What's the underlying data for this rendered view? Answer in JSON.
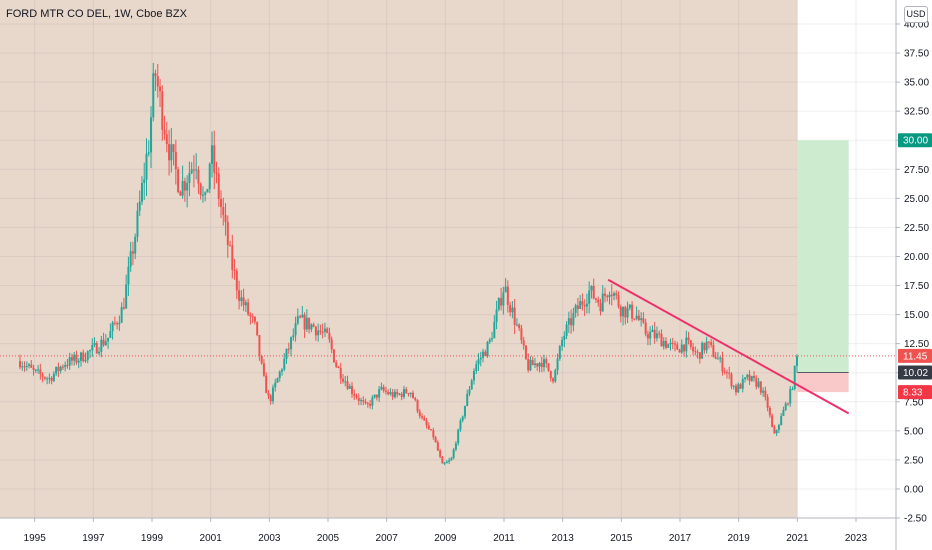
{
  "header": {
    "title": "FORD MTR CO DEL, 1W, Cboe BZX",
    "currency": "USD"
  },
  "colors": {
    "shading": "#e8d7cb",
    "up_candle": "#26a69a",
    "down_candle": "#ef5350",
    "trendline": "#ef2f6a",
    "target_zone": "#cdeccf",
    "stop_zone": "#f9c9c9",
    "target_badge": "#089981",
    "stop_badge": "#f23645",
    "entry_badge": "#363a45",
    "last_price_badge": "#ef5350"
  },
  "chart_data": {
    "type": "candlestick",
    "title": "FORD MTR CO DEL, 1W, Cboe BZX",
    "xlabel": "",
    "ylabel": "",
    "x_ticks": [
      "1995",
      "1997",
      "1999",
      "2001",
      "2003",
      "2005",
      "2007",
      "2009",
      "2011",
      "2013",
      "2015",
      "2017",
      "2019",
      "2021",
      "2023"
    ],
    "y_ticks": [
      "40.00",
      "37.50",
      "35.00",
      "32.50",
      "30.00",
      "27.50",
      "25.00",
      "22.50",
      "20.00",
      "17.50",
      "15.00",
      "12.50",
      "10.00",
      "7.50",
      "5.00",
      "2.50",
      "0.00",
      "-2.50"
    ],
    "xlim": [
      1994.5,
      2024.5
    ],
    "ylim": [
      -2.5,
      40
    ],
    "grid": true,
    "price_path": [
      [
        1994.5,
        11.0
      ],
      [
        1995.0,
        10.0
      ],
      [
        1995.5,
        9.5
      ],
      [
        1996.0,
        10.8
      ],
      [
        1996.5,
        11.2
      ],
      [
        1997.0,
        12.0
      ],
      [
        1997.5,
        13.0
      ],
      [
        1998.0,
        15.5
      ],
      [
        1998.5,
        23.0
      ],
      [
        1998.9,
        30.0
      ],
      [
        1999.1,
        36.0
      ],
      [
        1999.3,
        33.0
      ],
      [
        1999.7,
        28.0
      ],
      [
        2000.0,
        26.0
      ],
      [
        2000.5,
        28.5
      ],
      [
        2000.8,
        24.0
      ],
      [
        2001.0,
        29.0
      ],
      [
        2001.3,
        25.0
      ],
      [
        2001.7,
        19.5
      ],
      [
        2002.0,
        16.5
      ],
      [
        2002.5,
        14.0
      ],
      [
        2002.8,
        9.5
      ],
      [
        2003.0,
        7.5
      ],
      [
        2003.5,
        11.0
      ],
      [
        2004.0,
        14.5
      ],
      [
        2004.5,
        14.0
      ],
      [
        2005.0,
        13.0
      ],
      [
        2005.3,
        10.5
      ],
      [
        2005.8,
        8.5
      ],
      [
        2006.3,
        7.0
      ],
      [
        2006.8,
        8.5
      ],
      [
        2007.3,
        8.0
      ],
      [
        2007.8,
        8.5
      ],
      [
        2008.2,
        6.0
      ],
      [
        2008.6,
        4.5
      ],
      [
        2008.9,
        2.0
      ],
      [
        2009.2,
        2.5
      ],
      [
        2009.6,
        6.5
      ],
      [
        2010.0,
        10.5
      ],
      [
        2010.5,
        12.5
      ],
      [
        2011.0,
        17.5
      ],
      [
        2011.5,
        13.5
      ],
      [
        2011.8,
        10.5
      ],
      [
        2012.3,
        11.0
      ],
      [
        2012.7,
        9.5
      ],
      [
        2013.0,
        13.0
      ],
      [
        2013.5,
        15.5
      ],
      [
        2013.9,
        17.0
      ],
      [
        2014.3,
        16.0
      ],
      [
        2014.6,
        17.5
      ],
      [
        2015.0,
        15.5
      ],
      [
        2015.5,
        15.0
      ],
      [
        2015.8,
        13.5
      ],
      [
        2016.3,
        13.0
      ],
      [
        2016.8,
        12.0
      ],
      [
        2017.2,
        12.5
      ],
      [
        2017.6,
        11.5
      ],
      [
        2017.9,
        12.5
      ],
      [
        2018.2,
        11.5
      ],
      [
        2018.6,
        10.0
      ],
      [
        2018.9,
        8.5
      ],
      [
        2019.3,
        9.5
      ],
      [
        2019.7,
        9.0
      ],
      [
        2020.0,
        7.0
      ],
      [
        2020.2,
        4.5
      ],
      [
        2020.5,
        6.5
      ],
      [
        2020.8,
        8.5
      ],
      [
        2021.0,
        11.45
      ]
    ],
    "trendline": {
      "start": [
        2014.55,
        18.0
      ],
      "end": [
        2022.75,
        6.5
      ]
    },
    "long_position": {
      "entry": 10.02,
      "target": 30.0,
      "stop": 8.33,
      "start_year": 2021.0,
      "end_year": 2022.75
    },
    "shaded_period": [
      1994.5,
      2021.0
    ],
    "last_price": 11.45,
    "price_labels": {
      "target": "30.00",
      "last": "11.45",
      "entry": "10.02",
      "stop": "8.33"
    }
  }
}
